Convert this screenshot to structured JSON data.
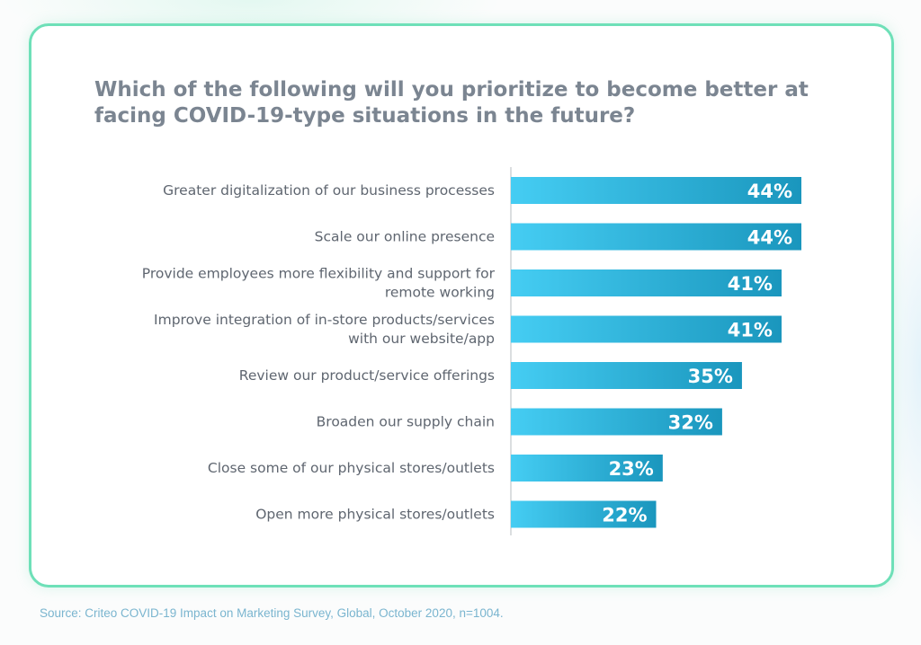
{
  "chart_data": {
    "type": "bar",
    "orientation": "horizontal",
    "title": "Which of the following will you prioritize to become better at facing COVID-19-type situations in the future?",
    "categories": [
      [
        "Greater digitalization of our business processes"
      ],
      [
        "Scale our online presence"
      ],
      [
        "Provide employees more flexibility and support for",
        "remote working"
      ],
      [
        "Improve integration of in-store products/services",
        "with our website/app"
      ],
      [
        "Review our product/service offerings"
      ],
      [
        "Broaden our supply chain"
      ],
      [
        "Close some of our physical stores/outlets"
      ],
      [
        "Open more physical stores/outlets"
      ]
    ],
    "values": [
      44,
      44,
      41,
      41,
      35,
      32,
      23,
      22
    ],
    "value_labels": [
      "44%",
      "44%",
      "41%",
      "41%",
      "35%",
      "32%",
      "23%",
      "22%"
    ],
    "unit": "%",
    "grid": false,
    "bar_gradient": [
      "#45cdf3",
      "#1a96bd"
    ]
  },
  "source": "Source: Criteo COVID-19 Impact on Marketing Survey, Global, October 2020, n=1004.",
  "colors": {
    "card_border": "#6ee0b8",
    "title": "#7b8591",
    "axis": "#cfd3d6",
    "source": "#7ab5cf"
  }
}
